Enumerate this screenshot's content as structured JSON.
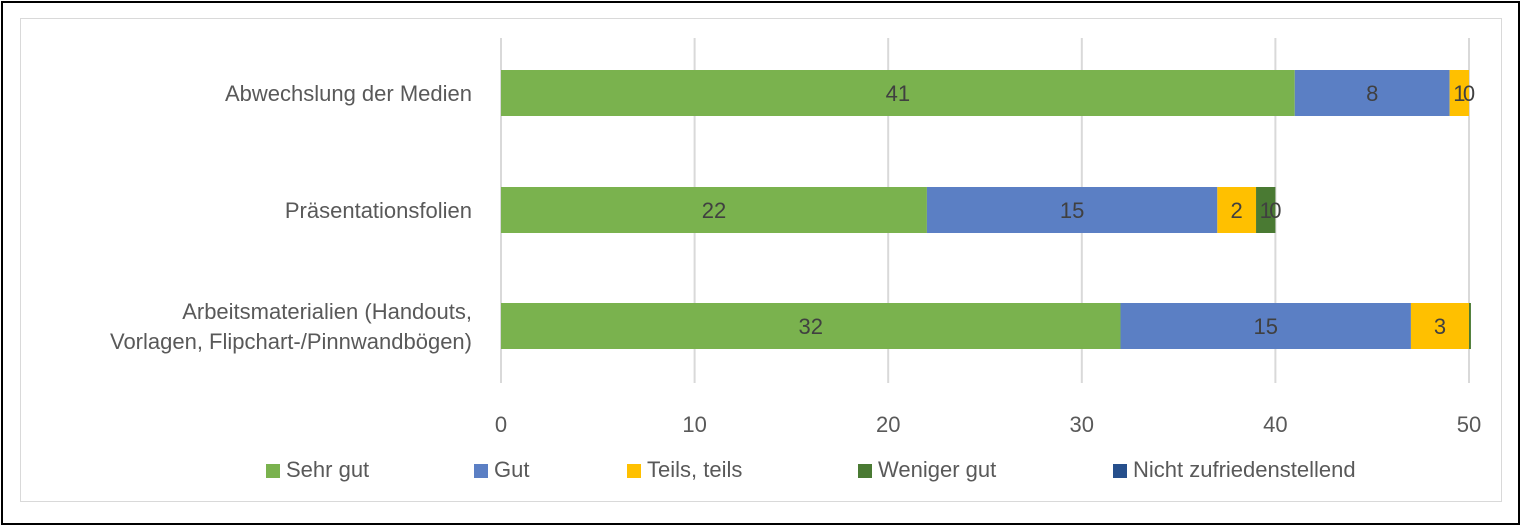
{
  "chart_data": {
    "type": "bar",
    "orientation": "horizontal",
    "stacked": true,
    "categories": [
      [
        "Abwechslung der Medien"
      ],
      [
        "Präsentationsfolien"
      ],
      [
        "Arbeitsmaterialien (Handouts,",
        "Vorlagen, Flipchart-/Pinnwandbögen)"
      ]
    ],
    "series": [
      {
        "name": "Sehr gut",
        "color": "#7ab24e",
        "values": [
          41,
          22,
          32
        ],
        "labels": [
          "41",
          "22",
          "32"
        ]
      },
      {
        "name": "Gut",
        "color": "#5b7fc4",
        "values": [
          8,
          15,
          15
        ],
        "labels": [
          "8",
          "15",
          "15"
        ]
      },
      {
        "name": "Teils, teils",
        "color": "#ffc000",
        "values": [
          1,
          2,
          3
        ],
        "labels": [
          "1",
          "2",
          "3"
        ]
      },
      {
        "name": "Weniger gut",
        "color": "#4a7a33",
        "values": [
          0,
          1,
          0.1
        ],
        "labels": [
          "0",
          "1",
          ""
        ]
      },
      {
        "name": "Nicht zufriedenstellend",
        "color": "#264f8c",
        "values": [
          0,
          0,
          0
        ],
        "labels": [
          "",
          "0",
          ""
        ]
      }
    ],
    "xlim": [
      0,
      50
    ],
    "xticks": [
      0,
      10,
      20,
      30,
      40,
      50
    ],
    "grid": "vertical",
    "legend": "bottom",
    "title": "",
    "xlabel": "",
    "ylabel": ""
  }
}
